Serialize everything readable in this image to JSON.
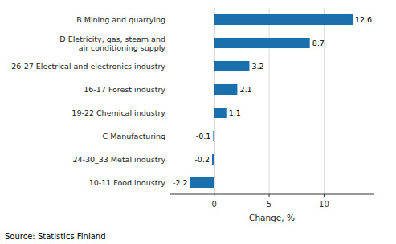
{
  "chart_data": {
    "type": "bar",
    "orientation": "horizontal",
    "categories": [
      "10-11 Food industry",
      "24-30_33 Metal industry",
      "C Manufacturing",
      "19-22 Chemical industry",
      "16-17 Forest industry",
      "26-27 Electrical and electronics industry",
      "D Eletricity, gas, steam and\nair conditioning supply",
      "B Mining and quarrying"
    ],
    "values": [
      -2.2,
      -0.2,
      -0.1,
      1.1,
      2.1,
      3.2,
      8.7,
      12.6
    ],
    "color": "#1a6fad",
    "xlabel": "Change, %",
    "xlim": [
      -4,
      14.5
    ],
    "xticks": [
      0,
      5,
      10
    ],
    "grid": true,
    "data_labels": true,
    "annotations": [
      "Source: Statistics Finland"
    ]
  }
}
